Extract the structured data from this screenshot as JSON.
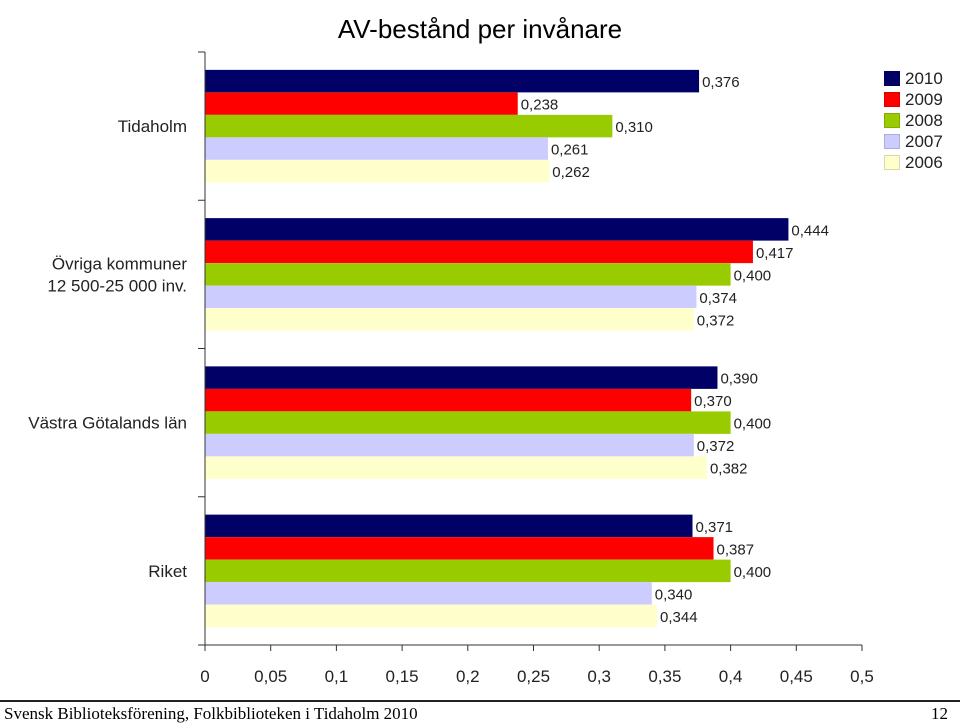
{
  "chart_data": {
    "type": "bar",
    "orientation": "horizontal",
    "title": "AV-bestånd per invånare",
    "categories": [
      "Tidaholm",
      "Övriga kommuner 12 500-25 000 inv.",
      "Västra Götalands län",
      "Riket"
    ],
    "category_lines": [
      [
        "Tidaholm"
      ],
      [
        "Övriga kommuner",
        "12 500-25 000 inv."
      ],
      [
        "Västra Götalands län"
      ],
      [
        "Riket"
      ]
    ],
    "series": [
      {
        "name": "2010",
        "color": "#000066",
        "values": [
          0.376,
          0.444,
          0.39,
          0.371
        ],
        "labels": [
          "0,376",
          "0,444",
          "0,390",
          "0,371"
        ]
      },
      {
        "name": "2009",
        "color": "#ff0000",
        "values": [
          0.238,
          0.417,
          0.37,
          0.387
        ],
        "labels": [
          "0,238",
          "0,417",
          "0,370",
          "0,387"
        ]
      },
      {
        "name": "2008",
        "color": "#99cc00",
        "values": [
          0.31,
          0.4,
          0.4,
          0.4
        ],
        "labels": [
          "0,310",
          "0,400",
          "0,400",
          "0,400"
        ]
      },
      {
        "name": "2007",
        "color": "#ccccff",
        "values": [
          0.261,
          0.374,
          0.372,
          0.34
        ],
        "labels": [
          "0,261",
          "0,374",
          "0,372",
          "0,340"
        ]
      },
      {
        "name": "2006",
        "color": "#ffffcc",
        "values": [
          0.262,
          0.372,
          0.382,
          0.344
        ],
        "labels": [
          "0,262",
          "0,372",
          "0,382",
          "0,344"
        ]
      }
    ],
    "xlim": [
      0,
      0.5
    ],
    "xticks": [
      0,
      0.05,
      0.1,
      0.15,
      0.2,
      0.25,
      0.3,
      0.35,
      0.4,
      0.45,
      0.5
    ],
    "xtick_labels": [
      "0",
      "0,05",
      "0,1",
      "0,15",
      "0,2",
      "0,25",
      "0,3",
      "0,35",
      "0,4",
      "0,45",
      "0,5"
    ],
    "grid": false,
    "legend_position": "top-right"
  },
  "footer": {
    "source": "Svensk Biblioteksförening, Folkbiblioteken i Tidaholm 2010",
    "page_number": "12"
  }
}
